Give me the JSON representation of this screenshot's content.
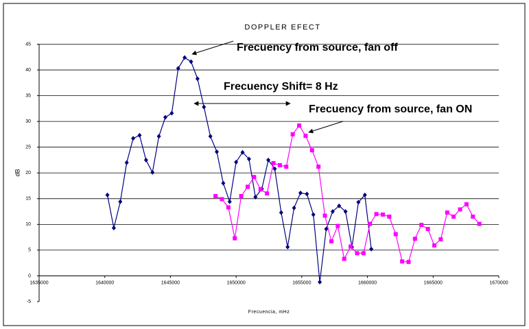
{
  "chart_data": {
    "type": "line",
    "title": "DOPPLER EFECT",
    "x_label": "Frecuencia, mHz",
    "y_label": "dB",
    "annotations": [
      "Frecuency from source, fan off",
      "Frecuency Shift= 8 Hz",
      "Frecuency from source, fan ON"
    ],
    "xlim": [
      1635000,
      1670000
    ],
    "xticks": [
      1635000,
      1640000,
      1645000,
      1650000,
      1655000,
      1660000,
      1665000,
      1670000
    ],
    "ylim": [
      -5,
      45
    ],
    "yticks": [
      -5,
      0,
      5,
      10,
      15,
      20,
      25,
      30,
      35,
      40,
      45
    ],
    "grid": true,
    "series": [
      {
        "color": "#000080",
        "marker": "diamond",
        "x": [
          1640200,
          1640690,
          1641180,
          1641670,
          1642160,
          1642650,
          1643140,
          1643630,
          1644120,
          1644610,
          1645100,
          1645590,
          1646080,
          1646570,
          1647060,
          1647550,
          1648040,
          1648530,
          1649020,
          1649510,
          1650000,
          1650490,
          1650980,
          1651470,
          1651960,
          1652450,
          1652940,
          1653430,
          1653920,
          1654410,
          1654900,
          1655390,
          1655880,
          1656370,
          1656860,
          1657350,
          1657840,
          1658330,
          1658820,
          1659310,
          1659800,
          1660290
        ],
        "values": [
          15.7,
          9.3,
          14.4,
          22,
          26.7,
          27.3,
          22.5,
          20.1,
          27.1,
          30.8,
          31.6,
          40.3,
          42.4,
          41.6,
          38.3,
          32.8,
          27.1,
          24.1,
          18,
          14.4,
          22.1,
          24,
          22.7,
          15.3,
          16.9,
          22.5,
          20.8,
          12.3,
          5.6,
          13.2,
          16.1,
          15.9,
          11.9,
          -1.2,
          9.1,
          12.5,
          13.6,
          12.5,
          5.6,
          14.3,
          15.7,
          5.2
        ]
      },
      {
        "color": "#ff00ff",
        "marker": "square",
        "x": [
          1648430,
          1648920,
          1649410,
          1649900,
          1650390,
          1650880,
          1651370,
          1651860,
          1652350,
          1652840,
          1653330,
          1653820,
          1654310,
          1654800,
          1655290,
          1655780,
          1656270,
          1656760,
          1657250,
          1657740,
          1658230,
          1658720,
          1659210,
          1659700,
          1660190,
          1660680,
          1661170,
          1661660,
          1662150,
          1662640,
          1663130,
          1663620,
          1664110,
          1664600,
          1665090,
          1665580,
          1666070,
          1666560,
          1667050,
          1667540,
          1668030,
          1668520
        ],
        "values": [
          15.5,
          14.9,
          13.3,
          7.3,
          15.5,
          17.3,
          19.2,
          16.8,
          16,
          21.9,
          21.5,
          21.2,
          27.5,
          29.2,
          27.2,
          24.4,
          21.2,
          11.7,
          6.7,
          9.7,
          3.3,
          5.7,
          4.4,
          4.4,
          10.1,
          12,
          11.9,
          11.5,
          8.1,
          2.8,
          2.7,
          7.2,
          9.9,
          9.1,
          5.9,
          7.1,
          12.3,
          11.5,
          12.9,
          13.9,
          11.5,
          10.1
        ]
      }
    ]
  }
}
